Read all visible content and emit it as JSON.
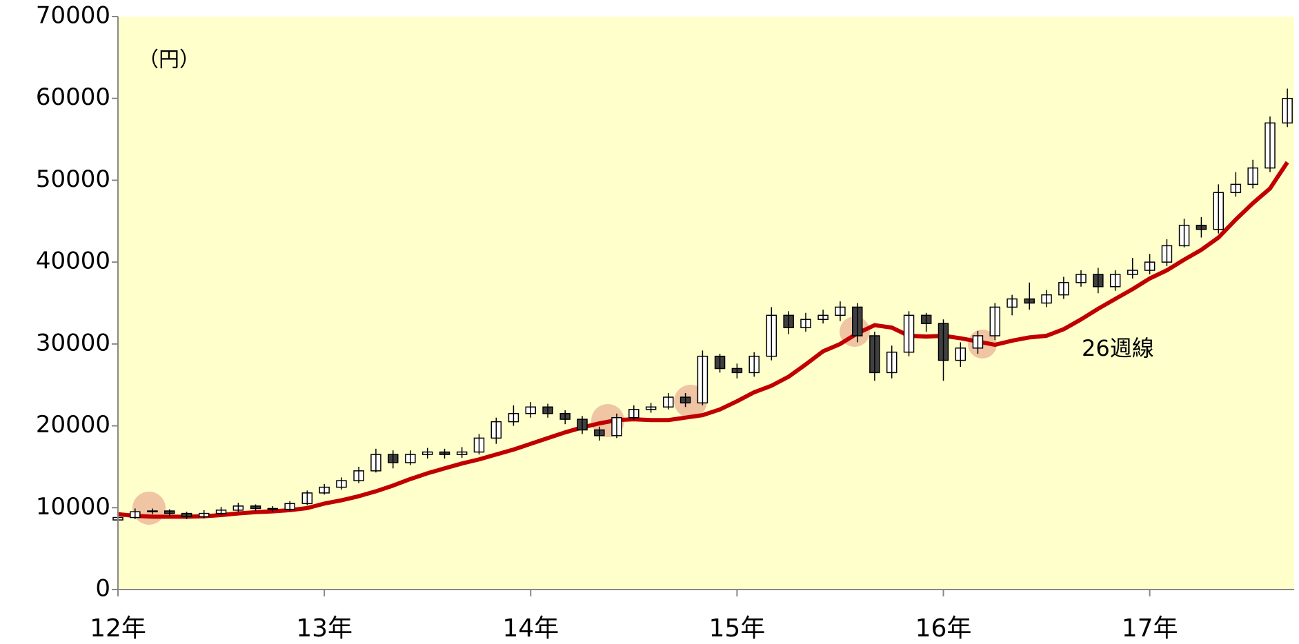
{
  "chart_data": {
    "type": "candlestick",
    "annotation": "（円）",
    "x": [
      12,
      12.083,
      12.167,
      12.25,
      12.333,
      12.417,
      12.5,
      12.583,
      12.667,
      12.75,
      12.833,
      12.917,
      13,
      13.083,
      13.167,
      13.25,
      13.333,
      13.417,
      13.5,
      13.583,
      13.667,
      13.75,
      13.833,
      13.917,
      14,
      14.083,
      14.167,
      14.25,
      14.333,
      14.417,
      14.5,
      14.583,
      14.667,
      14.75,
      14.833,
      14.917,
      15,
      15.083,
      15.167,
      15.25,
      15.333,
      15.417,
      15.5,
      15.583,
      15.667,
      15.75,
      15.833,
      15.917,
      16,
      16.083,
      16.167,
      16.25,
      16.333,
      16.417,
      16.5,
      16.583,
      16.667,
      16.75,
      16.833,
      16.917,
      17,
      17.083,
      17.167,
      17.25,
      17.333,
      17.417,
      17.5,
      17.583,
      17.667
    ],
    "open": [
      8500,
      8800,
      9500,
      9600,
      9300,
      8900,
      9300,
      9700,
      10200,
      9900,
      9800,
      10500,
      11800,
      12500,
      13300,
      14500,
      16500,
      15500,
      16500,
      16800,
      16500,
      16800,
      18500,
      20500,
      21500,
      22300,
      21500,
      20800,
      19500,
      18800,
      21000,
      22000,
      22300,
      23500,
      22800,
      28500,
      27000,
      26500,
      28500,
      33500,
      32000,
      33000,
      33500,
      34500,
      31000,
      26500,
      29000,
      33500,
      32500,
      28000,
      29500,
      31000,
      34500,
      35500,
      35000,
      36000,
      37500,
      38500,
      37000,
      38500,
      39000,
      40000,
      42000,
      44500,
      44000,
      48500,
      49500,
      51500,
      57000
    ],
    "high": [
      9200,
      9900,
      9900,
      9800,
      9500,
      9700,
      10100,
      10600,
      10400,
      10200,
      10800,
      12100,
      12900,
      13700,
      15000,
      17200,
      17000,
      17000,
      17300,
      17200,
      17400,
      19000,
      21000,
      22500,
      22900,
      22700,
      21900,
      21200,
      19900,
      21500,
      22500,
      22800,
      24000,
      24000,
      29200,
      28800,
      27600,
      29000,
      34500,
      34000,
      33800,
      34200,
      35200,
      35000,
      31500,
      29800,
      34000,
      33800,
      33000,
      30200,
      31600,
      35000,
      36000,
      37500,
      36600,
      38200,
      39000,
      39300,
      39000,
      40500,
      41000,
      42800,
      45300,
      45500,
      49500,
      51000,
      52500,
      57800,
      61200
    ],
    "low": [
      8300,
      8600,
      9200,
      9000,
      8600,
      8700,
      9100,
      9500,
      9600,
      9500,
      9600,
      10300,
      11600,
      12200,
      13000,
      14300,
      14800,
      15200,
      16000,
      16000,
      16100,
      16500,
      17800,
      20000,
      21000,
      21000,
      20200,
      19000,
      18200,
      18500,
      20700,
      21600,
      22000,
      22300,
      22500,
      26500,
      25800,
      26000,
      28000,
      31200,
      31500,
      32500,
      32800,
      30200,
      25500,
      25800,
      28500,
      31500,
      25500,
      27200,
      28800,
      30500,
      33500,
      34200,
      34500,
      35500,
      37000,
      36200,
      36500,
      38000,
      38500,
      39500,
      41800,
      43000,
      43500,
      48000,
      49000,
      51000,
      56500
    ],
    "close": [
      8800,
      9500,
      9600,
      9300,
      8900,
      9300,
      9700,
      10200,
      9900,
      9800,
      10500,
      11800,
      12500,
      13300,
      14500,
      16500,
      15500,
      16500,
      16800,
      16500,
      16800,
      18500,
      20500,
      21500,
      22300,
      21500,
      20800,
      19500,
      18800,
      21000,
      22000,
      22300,
      23500,
      22800,
      28500,
      27000,
      26500,
      28500,
      33500,
      32000,
      33000,
      33500,
      34500,
      31000,
      26500,
      29000,
      33500,
      32500,
      28000,
      29500,
      31000,
      34500,
      35500,
      35000,
      36000,
      37500,
      38500,
      37000,
      38500,
      39000,
      40000,
      42000,
      44500,
      44000,
      48500,
      49500,
      51500,
      57000,
      60000
    ],
    "up_color": "#ffffff",
    "down_color": "#404040",
    "edge_color": "#000000",
    "series": [
      {
        "name": "26週線",
        "color": "#c00000",
        "values": [
          9200,
          9000,
          8900,
          8900,
          8900,
          8950,
          9100,
          9300,
          9450,
          9550,
          9700,
          9950,
          10500,
          10900,
          11400,
          12000,
          12700,
          13500,
          14200,
          14800,
          15400,
          15900,
          16500,
          17100,
          17800,
          18500,
          19200,
          19800,
          20300,
          20700,
          20800,
          20700,
          20700,
          21000,
          21300,
          22000,
          23000,
          24100,
          24900,
          26000,
          27500,
          29100,
          30000,
          31300,
          32300,
          32000,
          31000,
          30900,
          31000,
          30700,
          30300,
          29900,
          30400,
          30800,
          31000,
          31800,
          33000,
          34300,
          35500,
          36700,
          38000,
          39000,
          40300,
          41500,
          43000,
          45200,
          47200,
          49000,
          52200
        ]
      }
    ],
    "xlim": [
      12,
      17.7
    ],
    "xticks": [
      {
        "value": 12,
        "label": "12年"
      },
      {
        "value": 13,
        "label": "13年"
      },
      {
        "value": 14,
        "label": "14年"
      },
      {
        "value": 15,
        "label": "15年"
      },
      {
        "value": 16,
        "label": "16年"
      },
      {
        "value": 17,
        "label": "17年"
      }
    ],
    "ylim": [
      0,
      70000
    ],
    "yticks": [
      0,
      10000,
      20000,
      30000,
      40000,
      50000,
      60000,
      70000
    ],
    "background": "#ffffcc"
  }
}
